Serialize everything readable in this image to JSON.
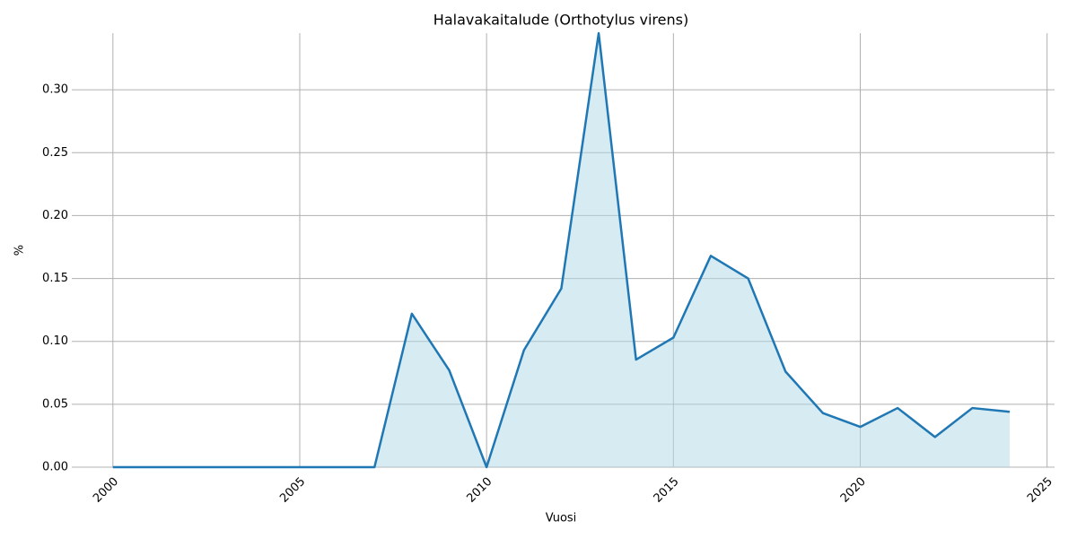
{
  "chart_data": {
    "type": "line",
    "title": "Halavakaitalude (Orthotylus virens)",
    "x_label": "Vuosi",
    "y_label": "%",
    "x": [
      2000,
      2001,
      2002,
      2003,
      2004,
      2005,
      2006,
      2007,
      2008,
      2009,
      2010,
      2011,
      2012,
      2013,
      2014,
      2015,
      2016,
      2017,
      2018,
      2019,
      2020,
      2021,
      2022,
      2023,
      2024
    ],
    "series": [
      {
        "color": "#1f77b4",
        "fill_color": "#add8e6",
        "values": [
          0,
          0,
          0,
          0,
          0,
          0,
          0,
          0,
          0.122,
          0.077,
          0,
          0.093,
          0.142,
          0.345,
          0.0855,
          0.103,
          0.168,
          0.15,
          0.076,
          0.043,
          0.032,
          0.047,
          0.024,
          0.047,
          0.044
        ]
      }
    ],
    "xlim": [
      1998.9,
      2025.2
    ],
    "ylim": [
      0,
      0.345
    ],
    "xticks": [
      2000,
      2005,
      2010,
      2015,
      2020,
      2025
    ],
    "yticks": [
      {
        "value": 0,
        "label": "0.00"
      },
      {
        "value": 0.05,
        "label": "0.05"
      },
      {
        "value": 0.1,
        "label": "0.10"
      },
      {
        "value": 0.15,
        "label": "0.15"
      },
      {
        "value": 0.2,
        "label": "0.20"
      },
      {
        "value": 0.25,
        "label": "0.25"
      },
      {
        "value": 0.3,
        "label": "0.30"
      }
    ],
    "grid": true
  }
}
